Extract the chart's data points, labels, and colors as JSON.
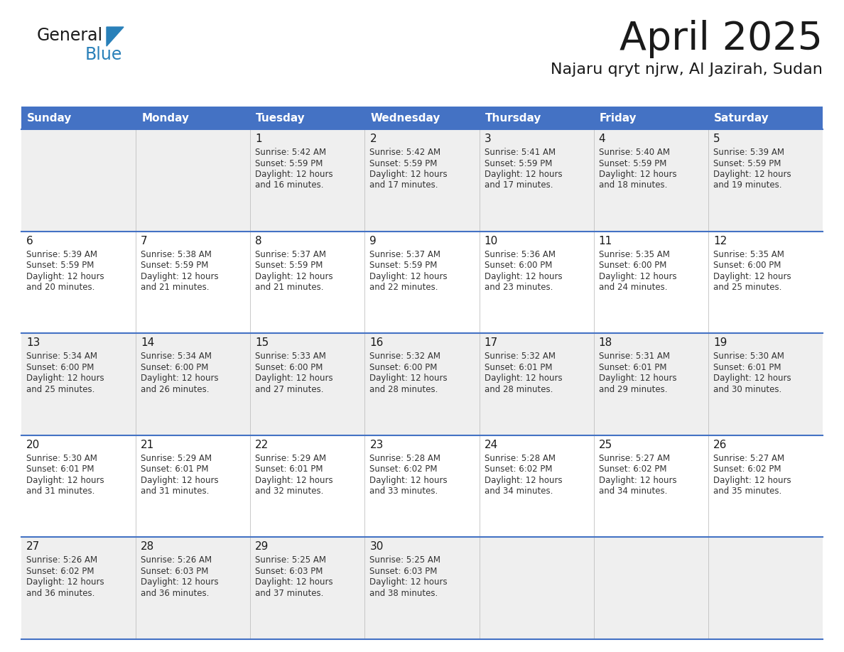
{
  "title": "April 2025",
  "subtitle": "Najaru qryt njrw, Al Jazirah, Sudan",
  "header_bg": "#4472C4",
  "header_text": "#FFFFFF",
  "row_bg_odd": "#EFEFEF",
  "row_bg_even": "#FFFFFF",
  "cell_text": "#222222",
  "border_color": "#4472C4",
  "days_of_week": [
    "Sunday",
    "Monday",
    "Tuesday",
    "Wednesday",
    "Thursday",
    "Friday",
    "Saturday"
  ],
  "weeks": [
    [
      {
        "day": "",
        "sunrise": "",
        "sunset": "",
        "daylight1": "",
        "daylight2": ""
      },
      {
        "day": "",
        "sunrise": "",
        "sunset": "",
        "daylight1": "",
        "daylight2": ""
      },
      {
        "day": "1",
        "sunrise": "Sunrise: 5:42 AM",
        "sunset": "Sunset: 5:59 PM",
        "daylight1": "Daylight: 12 hours",
        "daylight2": "and 16 minutes."
      },
      {
        "day": "2",
        "sunrise": "Sunrise: 5:42 AM",
        "sunset": "Sunset: 5:59 PM",
        "daylight1": "Daylight: 12 hours",
        "daylight2": "and 17 minutes."
      },
      {
        "day": "3",
        "sunrise": "Sunrise: 5:41 AM",
        "sunset": "Sunset: 5:59 PM",
        "daylight1": "Daylight: 12 hours",
        "daylight2": "and 17 minutes."
      },
      {
        "day": "4",
        "sunrise": "Sunrise: 5:40 AM",
        "sunset": "Sunset: 5:59 PM",
        "daylight1": "Daylight: 12 hours",
        "daylight2": "and 18 minutes."
      },
      {
        "day": "5",
        "sunrise": "Sunrise: 5:39 AM",
        "sunset": "Sunset: 5:59 PM",
        "daylight1": "Daylight: 12 hours",
        "daylight2": "and 19 minutes."
      }
    ],
    [
      {
        "day": "6",
        "sunrise": "Sunrise: 5:39 AM",
        "sunset": "Sunset: 5:59 PM",
        "daylight1": "Daylight: 12 hours",
        "daylight2": "and 20 minutes."
      },
      {
        "day": "7",
        "sunrise": "Sunrise: 5:38 AM",
        "sunset": "Sunset: 5:59 PM",
        "daylight1": "Daylight: 12 hours",
        "daylight2": "and 21 minutes."
      },
      {
        "day": "8",
        "sunrise": "Sunrise: 5:37 AM",
        "sunset": "Sunset: 5:59 PM",
        "daylight1": "Daylight: 12 hours",
        "daylight2": "and 21 minutes."
      },
      {
        "day": "9",
        "sunrise": "Sunrise: 5:37 AM",
        "sunset": "Sunset: 5:59 PM",
        "daylight1": "Daylight: 12 hours",
        "daylight2": "and 22 minutes."
      },
      {
        "day": "10",
        "sunrise": "Sunrise: 5:36 AM",
        "sunset": "Sunset: 6:00 PM",
        "daylight1": "Daylight: 12 hours",
        "daylight2": "and 23 minutes."
      },
      {
        "day": "11",
        "sunrise": "Sunrise: 5:35 AM",
        "sunset": "Sunset: 6:00 PM",
        "daylight1": "Daylight: 12 hours",
        "daylight2": "and 24 minutes."
      },
      {
        "day": "12",
        "sunrise": "Sunrise: 5:35 AM",
        "sunset": "Sunset: 6:00 PM",
        "daylight1": "Daylight: 12 hours",
        "daylight2": "and 25 minutes."
      }
    ],
    [
      {
        "day": "13",
        "sunrise": "Sunrise: 5:34 AM",
        "sunset": "Sunset: 6:00 PM",
        "daylight1": "Daylight: 12 hours",
        "daylight2": "and 25 minutes."
      },
      {
        "day": "14",
        "sunrise": "Sunrise: 5:34 AM",
        "sunset": "Sunset: 6:00 PM",
        "daylight1": "Daylight: 12 hours",
        "daylight2": "and 26 minutes."
      },
      {
        "day": "15",
        "sunrise": "Sunrise: 5:33 AM",
        "sunset": "Sunset: 6:00 PM",
        "daylight1": "Daylight: 12 hours",
        "daylight2": "and 27 minutes."
      },
      {
        "day": "16",
        "sunrise": "Sunrise: 5:32 AM",
        "sunset": "Sunset: 6:00 PM",
        "daylight1": "Daylight: 12 hours",
        "daylight2": "and 28 minutes."
      },
      {
        "day": "17",
        "sunrise": "Sunrise: 5:32 AM",
        "sunset": "Sunset: 6:01 PM",
        "daylight1": "Daylight: 12 hours",
        "daylight2": "and 28 minutes."
      },
      {
        "day": "18",
        "sunrise": "Sunrise: 5:31 AM",
        "sunset": "Sunset: 6:01 PM",
        "daylight1": "Daylight: 12 hours",
        "daylight2": "and 29 minutes."
      },
      {
        "day": "19",
        "sunrise": "Sunrise: 5:30 AM",
        "sunset": "Sunset: 6:01 PM",
        "daylight1": "Daylight: 12 hours",
        "daylight2": "and 30 minutes."
      }
    ],
    [
      {
        "day": "20",
        "sunrise": "Sunrise: 5:30 AM",
        "sunset": "Sunset: 6:01 PM",
        "daylight1": "Daylight: 12 hours",
        "daylight2": "and 31 minutes."
      },
      {
        "day": "21",
        "sunrise": "Sunrise: 5:29 AM",
        "sunset": "Sunset: 6:01 PM",
        "daylight1": "Daylight: 12 hours",
        "daylight2": "and 31 minutes."
      },
      {
        "day": "22",
        "sunrise": "Sunrise: 5:29 AM",
        "sunset": "Sunset: 6:01 PM",
        "daylight1": "Daylight: 12 hours",
        "daylight2": "and 32 minutes."
      },
      {
        "day": "23",
        "sunrise": "Sunrise: 5:28 AM",
        "sunset": "Sunset: 6:02 PM",
        "daylight1": "Daylight: 12 hours",
        "daylight2": "and 33 minutes."
      },
      {
        "day": "24",
        "sunrise": "Sunrise: 5:28 AM",
        "sunset": "Sunset: 6:02 PM",
        "daylight1": "Daylight: 12 hours",
        "daylight2": "and 34 minutes."
      },
      {
        "day": "25",
        "sunrise": "Sunrise: 5:27 AM",
        "sunset": "Sunset: 6:02 PM",
        "daylight1": "Daylight: 12 hours",
        "daylight2": "and 34 minutes."
      },
      {
        "day": "26",
        "sunrise": "Sunrise: 5:27 AM",
        "sunset": "Sunset: 6:02 PM",
        "daylight1": "Daylight: 12 hours",
        "daylight2": "and 35 minutes."
      }
    ],
    [
      {
        "day": "27",
        "sunrise": "Sunrise: 5:26 AM",
        "sunset": "Sunset: 6:02 PM",
        "daylight1": "Daylight: 12 hours",
        "daylight2": "and 36 minutes."
      },
      {
        "day": "28",
        "sunrise": "Sunrise: 5:26 AM",
        "sunset": "Sunset: 6:03 PM",
        "daylight1": "Daylight: 12 hours",
        "daylight2": "and 36 minutes."
      },
      {
        "day": "29",
        "sunrise": "Sunrise: 5:25 AM",
        "sunset": "Sunset: 6:03 PM",
        "daylight1": "Daylight: 12 hours",
        "daylight2": "and 37 minutes."
      },
      {
        "day": "30",
        "sunrise": "Sunrise: 5:25 AM",
        "sunset": "Sunset: 6:03 PM",
        "daylight1": "Daylight: 12 hours",
        "daylight2": "and 38 minutes."
      },
      {
        "day": "",
        "sunrise": "",
        "sunset": "",
        "daylight1": "",
        "daylight2": ""
      },
      {
        "day": "",
        "sunrise": "",
        "sunset": "",
        "daylight1": "",
        "daylight2": ""
      },
      {
        "day": "",
        "sunrise": "",
        "sunset": "",
        "daylight1": "",
        "daylight2": ""
      }
    ]
  ]
}
